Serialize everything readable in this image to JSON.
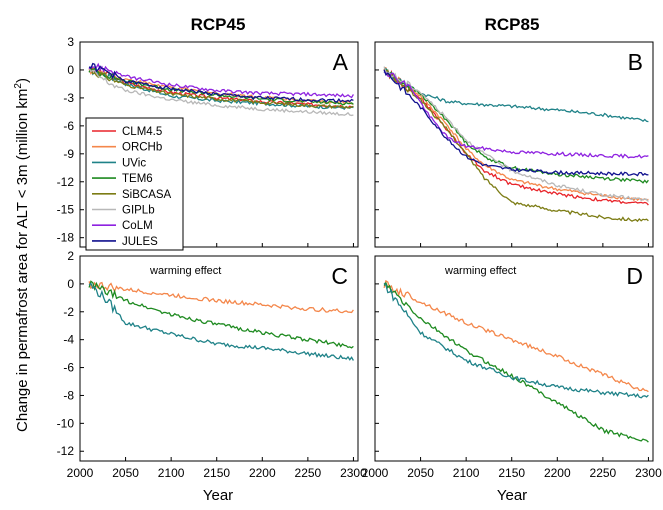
{
  "figure": {
    "ylabel": "Change in permafrost area for ALT < 3m (million km",
    "ylabel_sup": "2",
    "ylabel_close": ")",
    "xlabel": "Year",
    "col_titles": [
      "RCP45",
      "RCP85"
    ]
  },
  "colors": {
    "CLM4.5": "#e8242a",
    "ORCHb": "#f4874b",
    "UVic": "#1f8288",
    "TEM6": "#1e8a20",
    "SiBCASA": "#7c7c14",
    "GIPLb": "#b8b8b8",
    "CoLM": "#8e22e0",
    "JULES": "#10108e"
  },
  "legend": [
    "CLM4.5",
    "ORCHb",
    "UVic",
    "TEM6",
    "SiBCASA",
    "GIPLb",
    "CoLM",
    "JULES"
  ],
  "chart_data": [
    {
      "type": "line",
      "panel": "A",
      "column_title": "RCP45",
      "annotation": "",
      "x_ticks": [
        "2000",
        "2050",
        "2100",
        "2150",
        "2200",
        "2250",
        "2300"
      ],
      "y_ticks": [
        "3",
        "0",
        "-3",
        "-6",
        "-9",
        "-12",
        "-15",
        "-18"
      ],
      "xlim": [
        2000,
        2305
      ],
      "ylim": [
        -19,
        3
      ],
      "grid": false,
      "legend_position": "left",
      "series": [
        {
          "name": "CLM4.5",
          "x": [
            2010,
            2030,
            2050,
            2100,
            2150,
            2200,
            2250,
            2300
          ],
          "y": [
            0,
            -0.5,
            -1.4,
            -2.4,
            -3.0,
            -3.4,
            -3.7,
            -3.9
          ]
        },
        {
          "name": "ORCHb",
          "x": [
            2010,
            2030,
            2050,
            2100,
            2150,
            2200,
            2250,
            2300
          ],
          "y": [
            0,
            -0.5,
            -1.0,
            -1.9,
            -2.5,
            -2.9,
            -3.3,
            -3.5
          ]
        },
        {
          "name": "UVic",
          "x": [
            2010,
            2030,
            2050,
            2100,
            2150,
            2200,
            2250,
            2300
          ],
          "y": [
            0,
            -0.6,
            -1.5,
            -2.8,
            -3.3,
            -3.6,
            -3.9,
            -4.1
          ]
        },
        {
          "name": "TEM6",
          "x": [
            2010,
            2030,
            2050,
            2100,
            2150,
            2200,
            2250,
            2300
          ],
          "y": [
            0,
            -0.5,
            -1.2,
            -2.1,
            -2.7,
            -3.1,
            -3.4,
            -3.6
          ]
        },
        {
          "name": "SiBCASA",
          "x": [
            2010,
            2030,
            2050,
            2100,
            2150,
            2200,
            2250,
            2300
          ],
          "y": [
            0,
            -0.8,
            -1.6,
            -2.6,
            -3.1,
            -3.5,
            -3.8,
            -4.0
          ]
        },
        {
          "name": "GIPLb",
          "x": [
            2010,
            2030,
            2050,
            2100,
            2150,
            2200,
            2250,
            2300
          ],
          "y": [
            0,
            -1.3,
            -2.2,
            -3.2,
            -3.8,
            -4.2,
            -4.5,
            -4.8
          ]
        },
        {
          "name": "CoLM",
          "x": [
            2010,
            2030,
            2050,
            2100,
            2150,
            2200,
            2250,
            2300
          ],
          "y": [
            0.5,
            0.1,
            -0.7,
            -1.6,
            -2.2,
            -2.5,
            -2.6,
            -2.8
          ]
        },
        {
          "name": "JULES",
          "x": [
            2010,
            2030,
            2050,
            2100,
            2150,
            2200,
            2250,
            2300
          ],
          "y": [
            0.5,
            -0.2,
            -1.2,
            -2.0,
            -2.6,
            -3.0,
            -3.2,
            -3.3
          ]
        }
      ]
    },
    {
      "type": "line",
      "panel": "B",
      "column_title": "RCP85",
      "annotation": "",
      "x_ticks": [
        "2000",
        "2050",
        "2100",
        "2150",
        "2200",
        "2250",
        "2300"
      ],
      "y_ticks": [
        "3",
        "0",
        "-3",
        "-6",
        "-9",
        "-12",
        "-15",
        "-18"
      ],
      "xlim": [
        2000,
        2305
      ],
      "ylim": [
        -19,
        3
      ],
      "grid": false,
      "series": [
        {
          "name": "CLM4.5",
          "x": [
            2010,
            2050,
            2080,
            2100,
            2120,
            2150,
            2200,
            2250,
            2300
          ],
          "y": [
            0,
            -3.0,
            -6.5,
            -9.0,
            -10.8,
            -12.3,
            -13.3,
            -14.0,
            -14.4
          ]
        },
        {
          "name": "ORCHb",
          "x": [
            2010,
            2050,
            2080,
            2100,
            2120,
            2150,
            2200,
            2250,
            2300
          ],
          "y": [
            0,
            -2.8,
            -6.0,
            -8.5,
            -10.2,
            -11.8,
            -12.8,
            -13.5,
            -14.0
          ]
        },
        {
          "name": "UVic",
          "x": [
            2010,
            2050,
            2080,
            2100,
            2150,
            2200,
            2250,
            2300
          ],
          "y": [
            0,
            -2.5,
            -3.4,
            -3.6,
            -3.9,
            -4.3,
            -4.8,
            -5.5
          ]
        },
        {
          "name": "TEM6",
          "x": [
            2010,
            2050,
            2080,
            2100,
            2120,
            2150,
            2200,
            2250,
            2300
          ],
          "y": [
            0,
            -2.6,
            -5.5,
            -7.8,
            -9.3,
            -10.5,
            -11.2,
            -11.6,
            -12.0
          ]
        },
        {
          "name": "SiBCASA",
          "x": [
            2010,
            2050,
            2080,
            2100,
            2120,
            2150,
            2200,
            2250,
            2300
          ],
          "y": [
            0,
            -3.2,
            -6.5,
            -9.0,
            -11.6,
            -14.2,
            -15.1,
            -15.8,
            -16.2
          ]
        },
        {
          "name": "GIPLb",
          "x": [
            2010,
            2050,
            2080,
            2100,
            2120,
            2150,
            2200,
            2250,
            2300
          ],
          "y": [
            0,
            -2.4,
            -5.3,
            -7.5,
            -9.0,
            -10.8,
            -12.4,
            -13.4,
            -14.0
          ]
        },
        {
          "name": "CoLM",
          "x": [
            2010,
            2040,
            2060,
            2080,
            2100,
            2150,
            2200,
            2250,
            2300
          ],
          "y": [
            0,
            -2.0,
            -5.0,
            -7.3,
            -8.2,
            -8.8,
            -9.0,
            -9.2,
            -9.3
          ]
        },
        {
          "name": "JULES",
          "x": [
            2010,
            2050,
            2080,
            2100,
            2120,
            2150,
            2200,
            2250,
            2300
          ],
          "y": [
            0,
            -4.0,
            -7.5,
            -9.3,
            -10.2,
            -10.7,
            -11.0,
            -11.1,
            -11.2
          ]
        }
      ]
    },
    {
      "type": "line",
      "panel": "C",
      "column_title": "RCP45",
      "annotation": "warming effect",
      "x_ticks": [
        "2000",
        "2050",
        "2100",
        "2150",
        "2200",
        "2250",
        "2300"
      ],
      "y_ticks": [
        "2",
        "0",
        "-2",
        "-4",
        "-6",
        "-8",
        "-10",
        "-12"
      ],
      "xlim": [
        2000,
        2305
      ],
      "ylim": [
        -12.7,
        2
      ],
      "grid": false,
      "series": [
        {
          "name": "ORCHb",
          "x": [
            2010,
            2050,
            2100,
            2150,
            2200,
            2250,
            2300
          ],
          "y": [
            0,
            -0.4,
            -0.8,
            -1.2,
            -1.5,
            -1.8,
            -2.0
          ]
        },
        {
          "name": "TEM6",
          "x": [
            2010,
            2050,
            2100,
            2150,
            2200,
            2250,
            2300
          ],
          "y": [
            0,
            -1.2,
            -2.2,
            -2.9,
            -3.5,
            -4.0,
            -4.5
          ]
        },
        {
          "name": "UVic",
          "x": [
            2010,
            2030,
            2050,
            2100,
            2150,
            2200,
            2250,
            2300
          ],
          "y": [
            0,
            -1.2,
            -2.8,
            -3.6,
            -4.3,
            -4.6,
            -5.0,
            -5.4
          ]
        }
      ]
    },
    {
      "type": "line",
      "panel": "D",
      "column_title": "RCP85",
      "annotation": "warming effect",
      "x_ticks": [
        "2000",
        "2050",
        "2100",
        "2150",
        "2200",
        "2250",
        "2300"
      ],
      "y_ticks": [
        "2",
        "0",
        "-2",
        "-4",
        "-6",
        "-8",
        "-10",
        "-12"
      ],
      "xlim": [
        2000,
        2305
      ],
      "ylim": [
        -12.7,
        2
      ],
      "grid": false,
      "series": [
        {
          "name": "ORCHb",
          "x": [
            2010,
            2050,
            2100,
            2150,
            2200,
            2250,
            2300
          ],
          "y": [
            0,
            -1.3,
            -2.8,
            -4.0,
            -5.2,
            -6.5,
            -7.8
          ]
        },
        {
          "name": "TEM6",
          "x": [
            2010,
            2050,
            2100,
            2150,
            2200,
            2250,
            2300
          ],
          "y": [
            0,
            -2.5,
            -4.8,
            -6.6,
            -8.5,
            -10.5,
            -11.3
          ]
        },
        {
          "name": "UVic",
          "x": [
            2010,
            2050,
            2100,
            2150,
            2200,
            2250,
            2300
          ],
          "y": [
            0,
            -3.5,
            -5.5,
            -6.7,
            -7.4,
            -7.8,
            -8.1
          ]
        }
      ]
    }
  ]
}
